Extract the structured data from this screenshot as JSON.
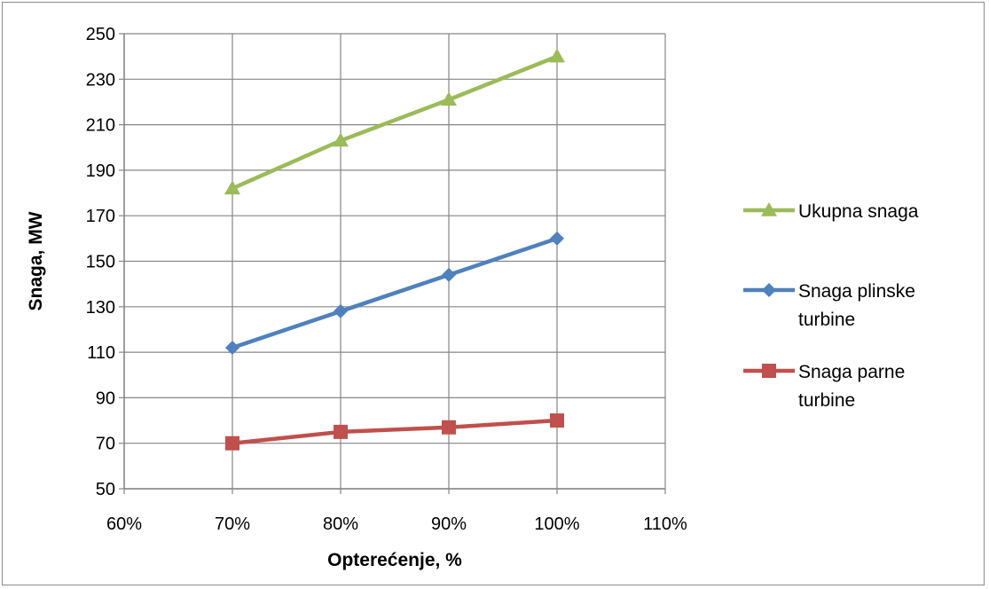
{
  "chart_data": {
    "type": "line",
    "title": "",
    "xlabel": "Opterećenje, %",
    "ylabel": "Snaga, MW",
    "x_ticks": [
      "60%",
      "70%",
      "80%",
      "90%",
      "100%",
      "110%"
    ],
    "x_tick_values": [
      60,
      70,
      80,
      90,
      100,
      110
    ],
    "y_ticks": [
      "50",
      "70",
      "90",
      "110",
      "130",
      "150",
      "170",
      "190",
      "210",
      "230",
      "250"
    ],
    "y_tick_values": [
      50,
      70,
      90,
      110,
      130,
      150,
      170,
      190,
      210,
      230,
      250
    ],
    "xlim": [
      60,
      110
    ],
    "ylim": [
      50,
      250
    ],
    "grid": true,
    "legend_position": "right",
    "x": [
      70,
      80,
      90,
      100
    ],
    "series": [
      {
        "name": "Ukupna snaga",
        "legend_lines": [
          "Ukupna snaga"
        ],
        "values": [
          182,
          203,
          221,
          240
        ],
        "color": "#9bbb59",
        "marker": "triangle"
      },
      {
        "name": "Snaga plinske turbine",
        "legend_lines": [
          "Snaga plinske",
          "turbine"
        ],
        "values": [
          112,
          128,
          144,
          160
        ],
        "color": "#4f81bd",
        "marker": "diamond"
      },
      {
        "name": "Snaga parne turbine",
        "legend_lines": [
          "Snaga parne",
          "turbine"
        ],
        "values": [
          70,
          75,
          77,
          80
        ],
        "color": "#c0504d",
        "marker": "square"
      }
    ]
  }
}
